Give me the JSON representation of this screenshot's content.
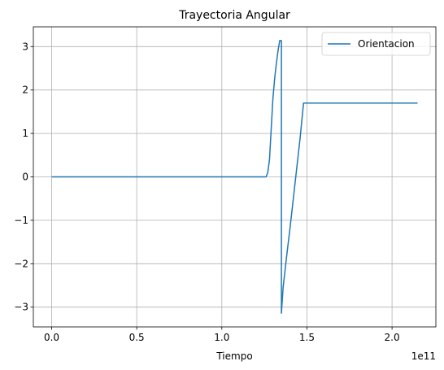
{
  "chart_data": {
    "type": "line",
    "title": "Trayectoria Angular",
    "xlabel": "Tiempo",
    "ylabel": "",
    "x_offset_label": "1e11",
    "xlim": [
      -0.1075,
      2.2575
    ],
    "ylim": [
      -3.455,
      3.455
    ],
    "xticks": [
      0.0,
      0.5,
      1.0,
      1.5,
      2.0
    ],
    "xtick_labels": [
      "0.0",
      "0.5",
      "1.0",
      "1.5",
      "2.0"
    ],
    "yticks": [
      -3,
      -2,
      -1,
      0,
      1,
      2,
      3
    ],
    "ytick_labels": [
      "−3",
      "−2",
      "−1",
      "0",
      "1",
      "2",
      "3"
    ],
    "grid": true,
    "legend_position": "top-right",
    "series": [
      {
        "name": "Orientacion",
        "color": "#1f77b4",
        "x": [
          0.0,
          1.26,
          1.27,
          1.28,
          1.29,
          1.3,
          1.31,
          1.32,
          1.33,
          1.34,
          1.35,
          1.35,
          1.36,
          1.38,
          1.4,
          1.42,
          1.44,
          1.46,
          1.48,
          1.5,
          2.15
        ],
        "y": [
          0.0,
          0.0,
          0.1,
          0.4,
          1.1,
          1.8,
          2.25,
          2.6,
          2.9,
          3.14,
          3.14,
          -3.14,
          -2.55,
          -1.85,
          -1.2,
          -0.5,
          0.2,
          0.9,
          1.7,
          1.7,
          1.7
        ]
      }
    ]
  }
}
